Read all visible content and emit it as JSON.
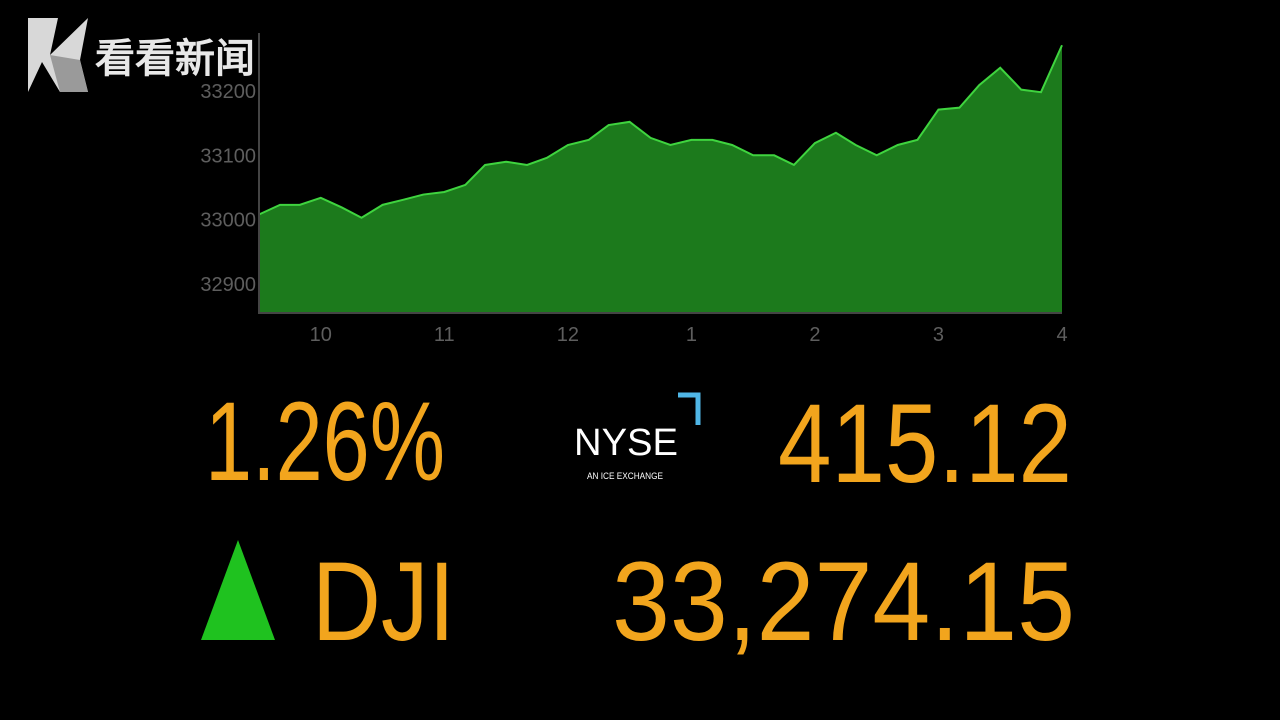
{
  "logo": "看看新闻",
  "chart_data": {
    "type": "area",
    "x": [
      9.5,
      9.67,
      9.83,
      10,
      10.17,
      10.33,
      10.5,
      10.67,
      10.83,
      11,
      11.17,
      11.33,
      11.5,
      11.67,
      11.83,
      12,
      12.17,
      12.33,
      12.5,
      12.67,
      12.83,
      13,
      13.17,
      13.33,
      13.5,
      13.67,
      13.83,
      14,
      14.17,
      14.33,
      14.5,
      14.67,
      14.83,
      15,
      15.17,
      15.33,
      15.5,
      15.67,
      15.83,
      16
    ],
    "values": [
      33008,
      33023,
      33023,
      33034,
      33019,
      33003,
      33023,
      33031,
      33039,
      33043,
      33054,
      33085,
      33090,
      33085,
      33096,
      33116,
      33124,
      33147,
      33152,
      33127,
      33116,
      33124,
      33124,
      33116,
      33100,
      33100,
      33085,
      33119,
      33135,
      33116,
      33100,
      33116,
      33124,
      33171,
      33174,
      33209,
      33236,
      33202,
      33198,
      33271
    ],
    "color": "#1c7a1c",
    "line_color": "#3fd43f",
    "xlim": [
      9.5,
      16
    ],
    "xticks": [
      10,
      11,
      12,
      {
        "value": 13,
        "label": "1"
      },
      {
        "value": 14,
        "label": "2"
      },
      {
        "value": 15,
        "label": "3"
      },
      {
        "value": 16,
        "label": "4"
      }
    ],
    "ylim": [
      32855,
      33290
    ],
    "yticks": [
      32900,
      33000,
      33100,
      33200
    ],
    "grid": false
  },
  "stats": {
    "change": "1.26%",
    "exchange": "NYSE",
    "exchange_sub": "AN ICE EXCHANGE",
    "points": "415.12",
    "index": "DJI",
    "close": "33,274.15"
  }
}
